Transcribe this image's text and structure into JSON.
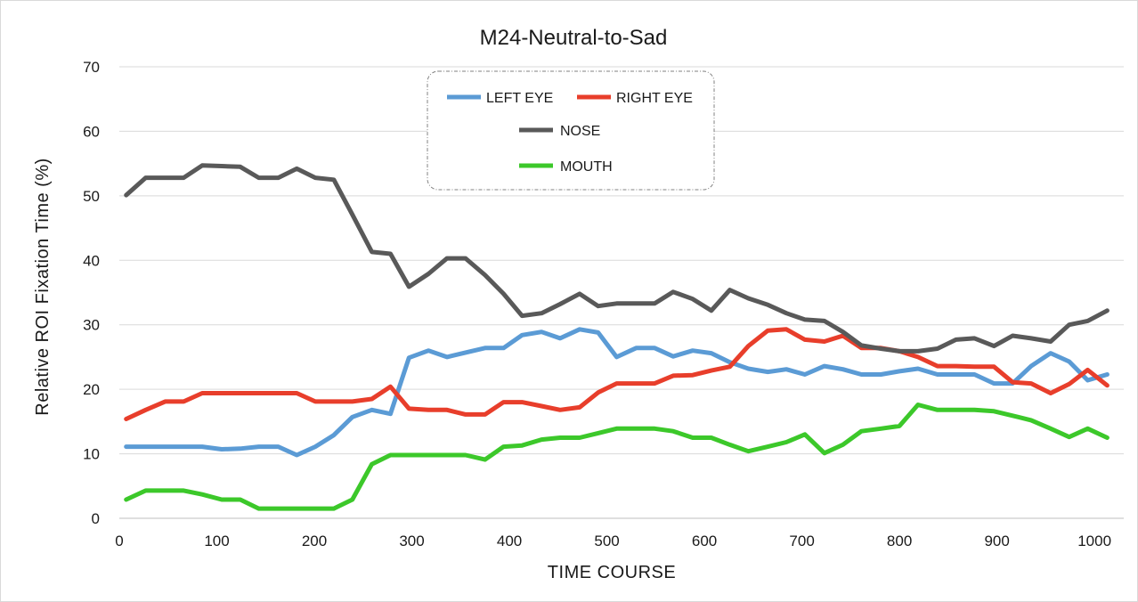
{
  "chart_data": {
    "type": "line",
    "title": "M24-Neutral-to-Sad",
    "xlabel": "TIME  COURSE",
    "ylabel": "Relative  ROI  Fixation  Time  (%)",
    "xlim": [
      0,
      1030
    ],
    "ylim": [
      0,
      70
    ],
    "xticks": [
      0,
      100,
      200,
      300,
      400,
      500,
      600,
      700,
      800,
      900,
      1000
    ],
    "yticks": [
      0,
      10,
      20,
      30,
      40,
      50,
      60,
      70
    ],
    "grid": "horizontal",
    "legend_position": "top-center",
    "x": [
      7,
      27,
      47,
      66,
      85,
      105,
      124,
      143,
      163,
      182,
      201,
      220,
      239,
      259,
      278,
      297,
      317,
      336,
      355,
      375,
      394,
      413,
      433,
      452,
      472,
      491,
      510,
      530,
      549,
      568,
      588,
      607,
      626,
      645,
      665,
      684,
      703,
      723,
      742,
      761,
      781,
      800,
      819,
      839,
      858,
      877,
      897,
      916,
      935,
      955,
      974,
      993,
      1013
    ],
    "series": [
      {
        "name": "LEFT EYE",
        "color": "#5b9bd5",
        "values": [
          11.1,
          11.1,
          11.1,
          11.1,
          11.1,
          10.7,
          10.8,
          11.1,
          11.1,
          9.8,
          11.1,
          12.9,
          15.7,
          16.8,
          16.2,
          24.9,
          26.0,
          25.0,
          25.7,
          26.4,
          26.4,
          28.4,
          28.9,
          27.9,
          29.3,
          28.8,
          25.0,
          26.4,
          26.4,
          25.1,
          26.0,
          25.6,
          24.2,
          23.2,
          22.7,
          23.1,
          22.3,
          23.6,
          23.1,
          22.3,
          22.3,
          22.8,
          23.2,
          22.3,
          22.3,
          22.3,
          20.9,
          20.9,
          23.6,
          25.6,
          24.3,
          21.4,
          22.3
        ]
      },
      {
        "name": "RIGHT EYE",
        "color": "#e83e2b",
        "values": [
          15.4,
          16.8,
          18.1,
          18.1,
          19.4,
          19.4,
          19.4,
          19.4,
          19.4,
          19.4,
          18.1,
          18.1,
          18.1,
          18.5,
          20.4,
          17.0,
          16.8,
          16.8,
          16.1,
          16.1,
          18.0,
          18.0,
          17.4,
          16.8,
          17.2,
          19.5,
          20.9,
          20.9,
          20.9,
          22.1,
          22.2,
          22.9,
          23.5,
          26.7,
          29.1,
          29.3,
          27.7,
          27.4,
          28.3,
          26.4,
          26.4,
          25.9,
          25.0,
          23.6,
          23.6,
          23.5,
          23.5,
          21.1,
          20.9,
          19.4,
          20.8,
          23.0,
          20.6
        ]
      },
      {
        "name": "NOSE",
        "color": "#595959",
        "values": [
          50.1,
          52.8,
          52.8,
          52.8,
          54.7,
          54.6,
          54.5,
          52.8,
          52.8,
          54.2,
          52.8,
          52.5,
          47.1,
          41.3,
          41.0,
          35.9,
          37.9,
          40.3,
          40.3,
          37.7,
          34.8,
          31.4,
          31.8,
          33.2,
          34.8,
          32.9,
          33.3,
          33.3,
          33.3,
          35.1,
          34.0,
          32.2,
          35.4,
          34.1,
          33.1,
          31.8,
          30.8,
          30.6,
          28.9,
          26.8,
          26.3,
          25.9,
          25.9,
          26.3,
          27.7,
          27.9,
          26.7,
          28.3,
          27.9,
          27.4,
          30.0,
          30.6,
          32.2
        ]
      },
      {
        "name": "MOUTH",
        "color": "#3cc82a",
        "values": [
          2.9,
          4.3,
          4.3,
          4.3,
          3.7,
          2.9,
          2.9,
          1.5,
          1.5,
          1.5,
          1.5,
          1.5,
          2.9,
          8.4,
          9.8,
          9.8,
          9.8,
          9.8,
          9.8,
          9.1,
          11.1,
          11.3,
          12.2,
          12.5,
          12.5,
          13.2,
          13.9,
          13.9,
          13.9,
          13.5,
          12.5,
          12.5,
          11.4,
          10.4,
          11.1,
          11.8,
          13.0,
          10.1,
          11.4,
          13.5,
          13.9,
          14.3,
          17.6,
          16.8,
          16.8,
          16.8,
          16.6,
          15.9,
          15.2,
          13.9,
          12.6,
          13.9,
          12.5
        ]
      }
    ]
  }
}
